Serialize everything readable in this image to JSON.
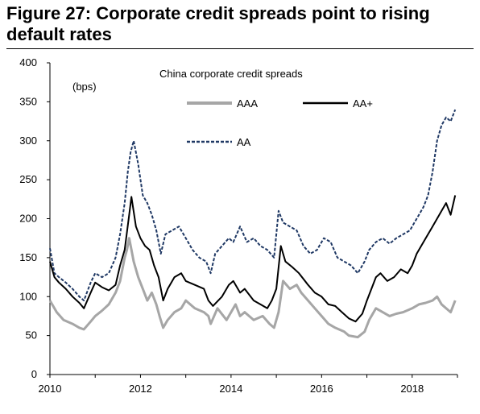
{
  "figure": {
    "title": "Figure 27: Corporate credit spreads point to rising default rates"
  },
  "chart_data": {
    "type": "line",
    "title": "China corporate credit spreads",
    "ylabel": "(bps)",
    "xlabel": "",
    "xlim": [
      2010,
      2019
    ],
    "ylim": [
      0,
      400
    ],
    "yticks": [
      0,
      50,
      100,
      150,
      200,
      250,
      300,
      350,
      400
    ],
    "xticks": [
      2010,
      2012,
      2014,
      2016,
      2018
    ],
    "legend_position": "top-center",
    "grid": false,
    "series": [
      {
        "name": "AAA",
        "color": "#a6a6a6",
        "style": "solid",
        "x": [
          2010.0,
          2010.15,
          2010.3,
          2010.5,
          2010.65,
          2010.75,
          2010.9,
          2011.0,
          2011.15,
          2011.3,
          2011.45,
          2011.55,
          2011.65,
          2011.7,
          2011.75,
          2011.85,
          2011.95,
          2012.05,
          2012.15,
          2012.25,
          2012.35,
          2012.42,
          2012.5,
          2012.6,
          2012.75,
          2012.9,
          2013.0,
          2013.2,
          2013.4,
          2013.5,
          2013.55,
          2013.7,
          2013.9,
          2014.0,
          2014.1,
          2014.2,
          2014.3,
          2014.5,
          2014.7,
          2014.85,
          2014.95,
          2015.05,
          2015.15,
          2015.3,
          2015.45,
          2015.55,
          2015.7,
          2015.85,
          2016.0,
          2016.15,
          2016.3,
          2016.5,
          2016.6,
          2016.8,
          2016.95,
          2017.05,
          2017.2,
          2017.35,
          2017.5,
          2017.65,
          2017.8,
          2018.0,
          2018.15,
          2018.3,
          2018.45,
          2018.55,
          2018.65,
          2018.75,
          2018.85,
          2018.95
        ],
        "y": [
          95,
          80,
          70,
          65,
          60,
          58,
          68,
          75,
          82,
          90,
          105,
          120,
          150,
          160,
          175,
          145,
          125,
          110,
          95,
          105,
          90,
          75,
          60,
          70,
          80,
          85,
          95,
          85,
          80,
          75,
          65,
          85,
          70,
          80,
          90,
          75,
          80,
          70,
          75,
          65,
          60,
          80,
          120,
          110,
          115,
          105,
          95,
          85,
          75,
          65,
          60,
          55,
          50,
          48,
          55,
          70,
          85,
          80,
          75,
          78,
          80,
          85,
          90,
          92,
          95,
          100,
          90,
          85,
          80,
          95
        ]
      },
      {
        "name": "AA+",
        "color": "#000000",
        "style": "solid",
        "x": [
          2010.0,
          2010.1,
          2010.2,
          2010.35,
          2010.5,
          2010.65,
          2010.75,
          2010.9,
          2011.0,
          2011.15,
          2011.3,
          2011.45,
          2011.55,
          2011.65,
          2011.75,
          2011.8,
          2011.9,
          2012.0,
          2012.1,
          2012.2,
          2012.3,
          2012.4,
          2012.5,
          2012.6,
          2012.75,
          2012.9,
          2013.0,
          2013.2,
          2013.4,
          2013.5,
          2013.6,
          2013.8,
          2013.95,
          2014.05,
          2014.2,
          2014.3,
          2014.5,
          2014.65,
          2014.8,
          2014.9,
          2015.0,
          2015.1,
          2015.2,
          2015.35,
          2015.5,
          2015.7,
          2015.85,
          2016.0,
          2016.15,
          2016.3,
          2016.45,
          2016.6,
          2016.75,
          2016.9,
          2017.0,
          2017.1,
          2017.2,
          2017.3,
          2017.45,
          2017.6,
          2017.75,
          2017.9,
          2018.0,
          2018.1,
          2018.2,
          2018.3,
          2018.45,
          2018.55,
          2018.65,
          2018.75,
          2018.85,
          2018.95
        ],
        "y": [
          145,
          125,
          118,
          110,
          100,
          92,
          85,
          105,
          118,
          112,
          108,
          115,
          140,
          160,
          205,
          228,
          190,
          175,
          165,
          160,
          140,
          125,
          95,
          110,
          125,
          130,
          120,
          115,
          110,
          95,
          88,
          100,
          115,
          120,
          105,
          110,
          95,
          90,
          85,
          95,
          110,
          165,
          145,
          138,
          130,
          115,
          105,
          100,
          90,
          88,
          80,
          72,
          68,
          78,
          95,
          110,
          125,
          130,
          120,
          125,
          135,
          130,
          140,
          155,
          165,
          175,
          190,
          200,
          210,
          220,
          205,
          230
        ]
      },
      {
        "name": "AA",
        "color": "#1f3864",
        "style": "dashed",
        "x": [
          2010.0,
          2010.1,
          2010.2,
          2010.35,
          2010.5,
          2010.65,
          2010.75,
          2010.9,
          2011.0,
          2011.15,
          2011.3,
          2011.45,
          2011.55,
          2011.65,
          2011.72,
          2011.78,
          2011.85,
          2011.95,
          2012.05,
          2012.15,
          2012.25,
          2012.35,
          2012.45,
          2012.55,
          2012.7,
          2012.85,
          2013.0,
          2013.15,
          2013.3,
          2013.45,
          2013.55,
          2013.65,
          2013.8,
          2013.95,
          2014.05,
          2014.2,
          2014.35,
          2014.5,
          2014.65,
          2014.8,
          2014.95,
          2015.05,
          2015.15,
          2015.3,
          2015.45,
          2015.6,
          2015.75,
          2015.9,
          2016.05,
          2016.2,
          2016.35,
          2016.5,
          2016.65,
          2016.8,
          2016.95,
          2017.05,
          2017.2,
          2017.35,
          2017.5,
          2017.65,
          2017.8,
          2017.95,
          2018.05,
          2018.15,
          2018.25,
          2018.35,
          2018.45,
          2018.55,
          2018.65,
          2018.75,
          2018.85,
          2018.95
        ],
        "y": [
          162,
          130,
          125,
          118,
          110,
          100,
          95,
          118,
          130,
          125,
          130,
          150,
          180,
          220,
          260,
          285,
          300,
          270,
          230,
          220,
          205,
          185,
          155,
          180,
          185,
          190,
          175,
          160,
          150,
          145,
          130,
          155,
          165,
          175,
          170,
          190,
          170,
          175,
          165,
          160,
          150,
          210,
          195,
          190,
          185,
          165,
          155,
          160,
          175,
          170,
          150,
          145,
          140,
          130,
          145,
          160,
          170,
          175,
          168,
          175,
          180,
          185,
          195,
          205,
          215,
          230,
          260,
          300,
          320,
          330,
          325,
          340
        ]
      }
    ]
  }
}
